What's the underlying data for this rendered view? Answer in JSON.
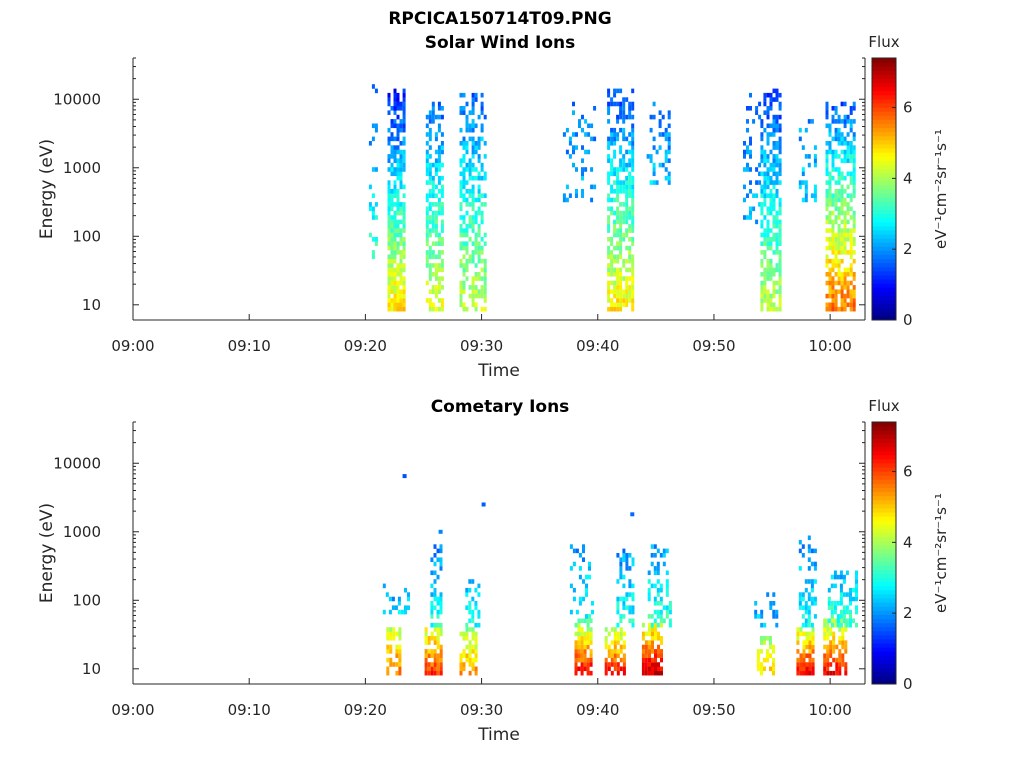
{
  "page_title": "RPCICA150714T09.PNG",
  "chart_data": [
    {
      "type": "heatmap",
      "title": "Solar Wind Ions",
      "xlabel": "Time",
      "ylabel": "Energy (eV)",
      "y_scale": "log",
      "ylim": [
        6,
        40000
      ],
      "xlim_minutes": [
        0,
        63
      ],
      "x_ticks": [
        {
          "label": "09:00",
          "minute": 0
        },
        {
          "label": "09:10",
          "minute": 10
        },
        {
          "label": "09:20",
          "minute": 20
        },
        {
          "label": "09:30",
          "minute": 30
        },
        {
          "label": "09:40",
          "minute": 40
        },
        {
          "label": "09:50",
          "minute": 50
        },
        {
          "label": "10:00",
          "minute": 60
        }
      ],
      "y_ticks": [
        {
          "label": "10",
          "value": 10
        },
        {
          "label": "100",
          "value": 100
        },
        {
          "label": "1000",
          "value": 1000
        },
        {
          "label": "10000",
          "value": 10000
        }
      ],
      "colorbar": {
        "title": "Flux",
        "unit_label": "eV⁻¹cm⁻²sr⁻¹s⁻¹",
        "range": [
          0,
          7.4
        ],
        "ticks": [
          {
            "label": "0",
            "value": 0
          },
          {
            "label": "2",
            "value": 2
          },
          {
            "label": "4",
            "value": 4
          },
          {
            "label": "6",
            "value": 6
          }
        ],
        "colormap": "jet"
      },
      "bursts": [
        {
          "t0": 20.3,
          "t1": 20.9,
          "emin": 40,
          "emax": 15000,
          "vlow": 3.2,
          "vhigh": 1.5,
          "density": 0.3
        },
        {
          "t0": 21.9,
          "t1": 23.3,
          "emin": 8,
          "emax": 14000,
          "vlow": 4.8,
          "vhigh": 1.0,
          "density": 0.92
        },
        {
          "t0": 25.2,
          "t1": 26.7,
          "emin": 7,
          "emax": 9000,
          "vlow": 4.5,
          "vhigh": 1.6,
          "density": 0.72
        },
        {
          "t0": 28.1,
          "t1": 30.2,
          "emin": 7,
          "emax": 12000,
          "vlow": 4.3,
          "vhigh": 1.6,
          "density": 0.65
        },
        {
          "t0": 37.0,
          "t1": 39.6,
          "emin": 300,
          "emax": 8000,
          "vlow": 2.2,
          "vhigh": 1.9,
          "density": 0.22
        },
        {
          "t0": 40.8,
          "t1": 42.9,
          "emin": 7,
          "emax": 14000,
          "vlow": 4.8,
          "vhigh": 1.3,
          "density": 0.8
        },
        {
          "t0": 44.2,
          "t1": 46.2,
          "emin": 500,
          "emax": 9000,
          "vlow": 2.3,
          "vhigh": 1.8,
          "density": 0.4
        },
        {
          "t0": 52.5,
          "t1": 53.9,
          "emin": 150,
          "emax": 12000,
          "vlow": 2.2,
          "vhigh": 1.6,
          "density": 0.25
        },
        {
          "t0": 54.0,
          "t1": 55.8,
          "emin": 7,
          "emax": 14000,
          "vlow": 4.2,
          "vhigh": 1.3,
          "density": 0.8
        },
        {
          "t0": 57.3,
          "t1": 58.8,
          "emin": 300,
          "emax": 5000,
          "vlow": 2.5,
          "vhigh": 2.0,
          "density": 0.3
        },
        {
          "t0": 59.6,
          "t1": 62.0,
          "emin": 7,
          "emax": 9000,
          "vlow": 5.8,
          "vhigh": 1.5,
          "density": 0.75
        }
      ]
    },
    {
      "type": "heatmap",
      "title": "Cometary Ions",
      "xlabel": "Time",
      "ylabel": "Energy (eV)",
      "y_scale": "log",
      "ylim": [
        6,
        40000
      ],
      "xlim_minutes": [
        0,
        63
      ],
      "x_ticks": [
        {
          "label": "09:00",
          "minute": 0
        },
        {
          "label": "09:10",
          "minute": 10
        },
        {
          "label": "09:20",
          "minute": 20
        },
        {
          "label": "09:30",
          "minute": 30
        },
        {
          "label": "09:40",
          "minute": 40
        },
        {
          "label": "09:50",
          "minute": 50
        },
        {
          "label": "10:00",
          "minute": 60
        }
      ],
      "y_ticks": [
        {
          "label": "10",
          "value": 10
        },
        {
          "label": "100",
          "value": 100
        },
        {
          "label": "1000",
          "value": 1000
        },
        {
          "label": "10000",
          "value": 10000
        }
      ],
      "colorbar": {
        "title": "Flux",
        "unit_label": "eV⁻¹cm⁻²sr⁻¹s⁻¹",
        "range": [
          0,
          7.4
        ],
        "ticks": [
          {
            "label": "0",
            "value": 0
          },
          {
            "label": "2",
            "value": 2
          },
          {
            "label": "4",
            "value": 4
          },
          {
            "label": "6",
            "value": 6
          }
        ],
        "colormap": "jet"
      },
      "bursts": [
        {
          "t0": 21.8,
          "t1": 23.1,
          "emin": 7,
          "emax": 40,
          "vlow": 5.8,
          "vhigh": 4.0,
          "density": 0.9
        },
        {
          "t0": 21.5,
          "t1": 23.8,
          "emin": 60,
          "emax": 160,
          "vlow": 2.5,
          "vhigh": 2.0,
          "density": 0.3
        },
        {
          "t0": 25.1,
          "t1": 26.6,
          "emin": 7,
          "emax": 40,
          "vlow": 6.3,
          "vhigh": 4.2,
          "density": 0.92
        },
        {
          "t0": 25.6,
          "t1": 26.6,
          "emin": 40,
          "emax": 600,
          "vlow": 3.0,
          "vhigh": 1.8,
          "density": 0.55
        },
        {
          "t0": 28.1,
          "t1": 29.6,
          "emin": 7,
          "emax": 35,
          "vlow": 5.6,
          "vhigh": 3.8,
          "density": 0.85
        },
        {
          "t0": 28.6,
          "t1": 29.8,
          "emin": 35,
          "emax": 200,
          "vlow": 3.0,
          "vhigh": 2.2,
          "density": 0.5
        },
        {
          "t0": 38.0,
          "t1": 39.5,
          "emin": 7,
          "emax": 50,
          "vlow": 6.8,
          "vhigh": 3.5,
          "density": 0.85
        },
        {
          "t0": 37.6,
          "t1": 39.6,
          "emin": 50,
          "emax": 700,
          "vlow": 2.8,
          "vhigh": 2.0,
          "density": 0.35
        },
        {
          "t0": 40.6,
          "t1": 42.3,
          "emin": 7,
          "emax": 40,
          "vlow": 6.6,
          "vhigh": 3.8,
          "density": 0.9
        },
        {
          "t0": 41.6,
          "t1": 43.0,
          "emin": 40,
          "emax": 500,
          "vlow": 3.0,
          "vhigh": 2.0,
          "density": 0.5
        },
        {
          "t0": 43.8,
          "t1": 45.5,
          "emin": 7,
          "emax": 45,
          "vlow": 7.1,
          "vhigh": 4.2,
          "density": 0.95
        },
        {
          "t0": 44.3,
          "t1": 46.3,
          "emin": 40,
          "emax": 600,
          "vlow": 3.2,
          "vhigh": 2.0,
          "density": 0.45
        },
        {
          "t0": 53.7,
          "t1": 55.0,
          "emin": 7,
          "emax": 30,
          "vlow": 5.0,
          "vhigh": 3.8,
          "density": 0.75
        },
        {
          "t0": 53.2,
          "t1": 55.4,
          "emin": 40,
          "emax": 150,
          "vlow": 2.3,
          "vhigh": 2.0,
          "density": 0.2
        },
        {
          "t0": 57.1,
          "t1": 58.5,
          "emin": 7,
          "emax": 40,
          "vlow": 6.8,
          "vhigh": 4.0,
          "density": 0.9
        },
        {
          "t0": 57.3,
          "t1": 58.8,
          "emin": 40,
          "emax": 800,
          "vlow": 2.8,
          "vhigh": 2.0,
          "density": 0.45
        },
        {
          "t0": 59.4,
          "t1": 61.3,
          "emin": 7,
          "emax": 50,
          "vlow": 6.8,
          "vhigh": 3.8,
          "density": 0.9
        },
        {
          "t0": 59.8,
          "t1": 62.2,
          "emin": 40,
          "emax": 250,
          "vlow": 3.2,
          "vhigh": 2.3,
          "density": 0.55
        }
      ],
      "spots": [
        {
          "t": 23.2,
          "e": 6500,
          "v": 1.5
        },
        {
          "t": 30.0,
          "e": 2500,
          "v": 1.6
        },
        {
          "t": 42.8,
          "e": 1800,
          "v": 1.7
        },
        {
          "t": 26.3,
          "e": 1000,
          "v": 1.9
        }
      ]
    }
  ]
}
